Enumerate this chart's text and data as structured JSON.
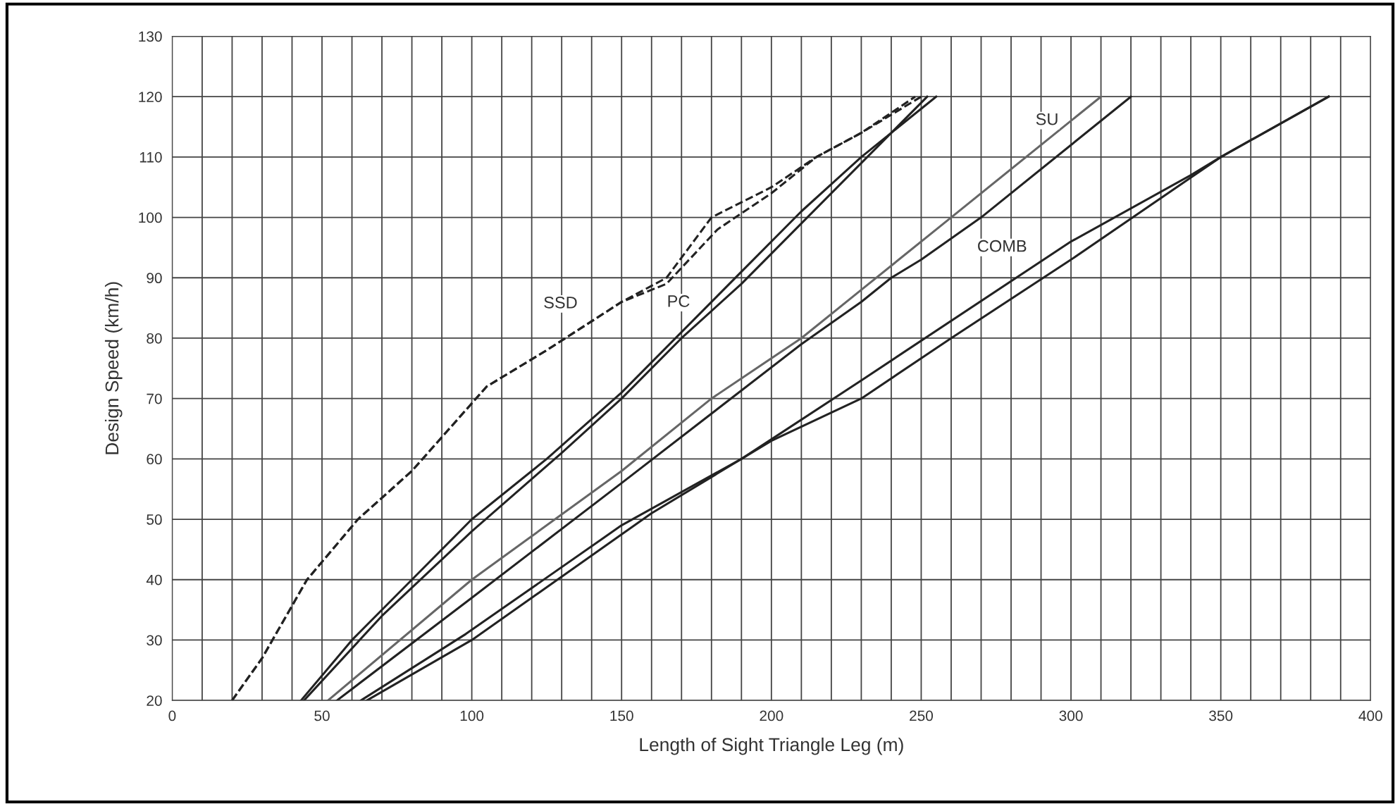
{
  "chart_data": {
    "type": "line",
    "xlabel": "Length of Sight Triangle Leg (m)",
    "ylabel": "Design Speed (km/h)",
    "xlim": [
      0,
      400
    ],
    "ylim": [
      20,
      130
    ],
    "xticks": [
      0,
      {
        "value": 10,
        "label": null
      },
      {
        "value": 20,
        "label": null
      },
      {
        "value": 30,
        "label": null
      },
      {
        "value": 40,
        "label": null
      },
      50,
      {
        "value": 60,
        "label": null
      },
      {
        "value": 70,
        "label": null
      },
      {
        "value": 80,
        "label": null
      },
      {
        "value": 90,
        "label": null
      },
      100,
      {
        "value": 110,
        "label": null
      },
      {
        "value": 120,
        "label": null
      },
      {
        "value": 130,
        "label": null
      },
      {
        "value": 140,
        "label": null
      },
      150,
      {
        "value": 160,
        "label": null
      },
      {
        "value": 170,
        "label": null
      },
      {
        "value": 180,
        "label": null
      },
      {
        "value": 190,
        "label": null
      },
      200,
      {
        "value": 210,
        "label": null
      },
      {
        "value": 220,
        "label": null
      },
      {
        "value": 230,
        "label": null
      },
      {
        "value": 240,
        "label": null
      },
      250,
      {
        "value": 260,
        "label": null
      },
      {
        "value": 270,
        "label": null
      },
      {
        "value": 280,
        "label": null
      },
      {
        "value": 290,
        "label": null
      },
      300,
      {
        "value": 310,
        "label": null
      },
      {
        "value": 320,
        "label": null
      },
      {
        "value": 330,
        "label": null
      },
      {
        "value": 340,
        "label": null
      },
      350,
      {
        "value": 360,
        "label": null
      },
      {
        "value": 370,
        "label": null
      },
      {
        "value": 380,
        "label": null
      },
      {
        "value": 390,
        "label": null
      },
      400
    ],
    "yticks": [
      20,
      30,
      40,
      50,
      60,
      70,
      80,
      90,
      100,
      110,
      120,
      130
    ],
    "grid": true,
    "marker": "none",
    "series": [
      {
        "color": "#222222",
        "line_style": "dashed",
        "x": [
          20,
          30,
          45,
          62,
          80,
          105,
          125,
          150,
          165,
          180,
          200,
          215,
          230,
          248
        ],
        "values": [
          20,
          27,
          40,
          50,
          58,
          72,
          78,
          86,
          90,
          100,
          105,
          110,
          114,
          120
        ]
      },
      {
        "color": "#222222",
        "line_style": "dashed",
        "x": [
          20,
          30,
          45,
          62,
          80,
          105,
          125,
          150,
          165,
          182,
          200,
          215,
          230,
          250
        ],
        "values": [
          20,
          27,
          40,
          50,
          58,
          72,
          78,
          86,
          89,
          98,
          104,
          110,
          114,
          120
        ]
      },
      {
        "color": "#222222",
        "line_style": "solid",
        "x": [
          43,
          60,
          80,
          100,
          125,
          150,
          170,
          190,
          210,
          230,
          255
        ],
        "values": [
          20,
          30,
          40,
          50,
          60,
          71,
          81,
          91,
          101,
          110,
          120
        ]
      },
      {
        "color": "#222222",
        "line_style": "solid",
        "x": [
          44,
          70,
          100,
          130,
          150,
          170,
          190,
          210,
          240,
          252
        ],
        "values": [
          20,
          34,
          48,
          61,
          70,
          80,
          89,
          99,
          114,
          120
        ]
      },
      {
        "color": "#666666",
        "line_style": "solid",
        "x": [
          52,
          100,
          150,
          180,
          210,
          230,
          260,
          310
        ],
        "values": [
          20,
          40,
          58,
          70,
          80,
          88,
          100,
          120
        ]
      },
      {
        "color": "#222222",
        "line_style": "solid",
        "x": [
          55,
          100,
          150,
          210,
          230,
          240,
          250,
          270,
          320
        ],
        "values": [
          20,
          37,
          56,
          79,
          86,
          90,
          93,
          100,
          120
        ]
      },
      {
        "color": "#222222",
        "line_style": "solid",
        "x": [
          63,
          98,
          150,
          190,
          230,
          300,
          340,
          350,
          386
        ],
        "values": [
          20,
          31,
          49,
          60,
          73,
          96,
          107,
          110,
          120
        ]
      },
      {
        "color": "#222222",
        "line_style": "solid",
        "x": [
          65,
          100,
          160,
          200,
          230,
          260,
          300,
          350,
          386
        ],
        "values": [
          20,
          30,
          51,
          63,
          70,
          80,
          93,
          110,
          120
        ]
      }
    ],
    "annotations": [
      "SSD",
      "PC",
      "SU",
      "COMB"
    ]
  }
}
